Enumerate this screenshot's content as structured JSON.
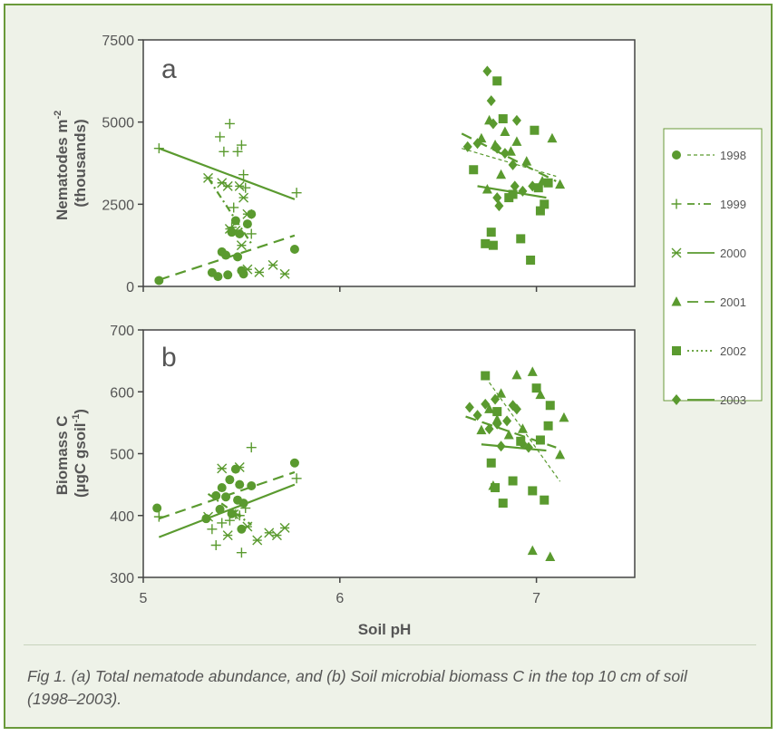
{
  "colors": {
    "series": "#5a9a2f",
    "frame_border": "#6a9a3a",
    "background": "#eef2e8",
    "axis": "#444444",
    "text": "#555555"
  },
  "caption": "Fig 1. (a) Total nematode abundance, and (b) Soil microbial biomass C in the top 10 cm of soil (1998–2003).",
  "legend": [
    {
      "name": "1998",
      "marker": "circle",
      "line": "fine-dash"
    },
    {
      "name": "1999",
      "marker": "plus",
      "line": "dash-dot"
    },
    {
      "name": "2000",
      "marker": "asterisk",
      "line": "solid"
    },
    {
      "name": "2001",
      "marker": "triangle",
      "line": "long-dash"
    },
    {
      "name": "2002",
      "marker": "square",
      "line": "dotted"
    },
    {
      "name": "2003",
      "marker": "diamond",
      "line": "solid"
    }
  ],
  "chart_data": [
    {
      "type": "scatter",
      "panel_label": "a",
      "xlabel": "",
      "ylabel": "Nematodes m⁻² (thousands)",
      "xlim": [
        5,
        7.5
      ],
      "ylim": [
        0,
        7500
      ],
      "x_ticks": [],
      "y_ticks": [
        "0",
        "2500",
        "5000",
        "7500"
      ],
      "y_tick_values": [
        0,
        2500,
        5000,
        7500
      ],
      "points": [
        {
          "m": "circle",
          "x": 5.08,
          "y": 180
        },
        {
          "m": "circle",
          "x": 5.35,
          "y": 420
        },
        {
          "m": "circle",
          "x": 5.38,
          "y": 300
        },
        {
          "m": "circle",
          "x": 5.4,
          "y": 1050
        },
        {
          "m": "circle",
          "x": 5.42,
          "y": 950
        },
        {
          "m": "circle",
          "x": 5.43,
          "y": 350
        },
        {
          "m": "circle",
          "x": 5.45,
          "y": 1650
        },
        {
          "m": "circle",
          "x": 5.47,
          "y": 2000
        },
        {
          "m": "circle",
          "x": 5.48,
          "y": 900
        },
        {
          "m": "circle",
          "x": 5.49,
          "y": 1600
        },
        {
          "m": "circle",
          "x": 5.5,
          "y": 480
        },
        {
          "m": "circle",
          "x": 5.51,
          "y": 380
        },
        {
          "m": "circle",
          "x": 5.53,
          "y": 1900
        },
        {
          "m": "circle",
          "x": 5.55,
          "y": 2200
        },
        {
          "m": "circle",
          "x": 5.77,
          "y": 1130
        },
        {
          "m": "plus",
          "x": 5.08,
          "y": 4200
        },
        {
          "m": "plus",
          "x": 5.39,
          "y": 4550
        },
        {
          "m": "plus",
          "x": 5.41,
          "y": 4100
        },
        {
          "m": "plus",
          "x": 5.44,
          "y": 4950
        },
        {
          "m": "plus",
          "x": 5.48,
          "y": 4100
        },
        {
          "m": "plus",
          "x": 5.5,
          "y": 4300
        },
        {
          "m": "plus",
          "x": 5.51,
          "y": 3400
        },
        {
          "m": "plus",
          "x": 5.52,
          "y": 3000
        },
        {
          "m": "plus",
          "x": 5.46,
          "y": 2400
        },
        {
          "m": "plus",
          "x": 5.45,
          "y": 1800
        },
        {
          "m": "plus",
          "x": 5.55,
          "y": 1600
        },
        {
          "m": "plus",
          "x": 5.78,
          "y": 2850
        },
        {
          "m": "asterisk",
          "x": 5.33,
          "y": 3300
        },
        {
          "m": "asterisk",
          "x": 5.4,
          "y": 3150
        },
        {
          "m": "asterisk",
          "x": 5.43,
          "y": 3050
        },
        {
          "m": "asterisk",
          "x": 5.49,
          "y": 3050
        },
        {
          "m": "asterisk",
          "x": 5.51,
          "y": 2700
        },
        {
          "m": "asterisk",
          "x": 5.53,
          "y": 2200
        },
        {
          "m": "asterisk",
          "x": 5.44,
          "y": 1750
        },
        {
          "m": "asterisk",
          "x": 5.47,
          "y": 1700
        },
        {
          "m": "asterisk",
          "x": 5.5,
          "y": 1250
        },
        {
          "m": "asterisk",
          "x": 5.53,
          "y": 520
        },
        {
          "m": "asterisk",
          "x": 5.59,
          "y": 430
        },
        {
          "m": "asterisk",
          "x": 5.66,
          "y": 650
        },
        {
          "m": "asterisk",
          "x": 5.72,
          "y": 380
        },
        {
          "m": "triangle",
          "x": 6.72,
          "y": 4500
        },
        {
          "m": "triangle",
          "x": 6.76,
          "y": 5050
        },
        {
          "m": "triangle",
          "x": 6.79,
          "y": 4300
        },
        {
          "m": "triangle",
          "x": 6.84,
          "y": 4700
        },
        {
          "m": "triangle",
          "x": 6.87,
          "y": 4100
        },
        {
          "m": "triangle",
          "x": 6.9,
          "y": 4400
        },
        {
          "m": "triangle",
          "x": 6.95,
          "y": 3800
        },
        {
          "m": "triangle",
          "x": 7.03,
          "y": 3200
        },
        {
          "m": "triangle",
          "x": 7.08,
          "y": 4500
        },
        {
          "m": "triangle",
          "x": 7.12,
          "y": 3100
        },
        {
          "m": "triangle",
          "x": 6.82,
          "y": 3400
        },
        {
          "m": "triangle",
          "x": 6.75,
          "y": 2950
        },
        {
          "m": "square",
          "x": 6.68,
          "y": 3550
        },
        {
          "m": "square",
          "x": 6.74,
          "y": 1300
        },
        {
          "m": "square",
          "x": 6.77,
          "y": 1650
        },
        {
          "m": "square",
          "x": 6.78,
          "y": 1250
        },
        {
          "m": "square",
          "x": 6.83,
          "y": 5100
        },
        {
          "m": "square",
          "x": 6.86,
          "y": 2700
        },
        {
          "m": "square",
          "x": 6.92,
          "y": 1450
        },
        {
          "m": "square",
          "x": 6.97,
          "y": 800
        },
        {
          "m": "square",
          "x": 6.99,
          "y": 4750
        },
        {
          "m": "square",
          "x": 7.01,
          "y": 3000
        },
        {
          "m": "square",
          "x": 7.02,
          "y": 2300
        },
        {
          "m": "square",
          "x": 7.04,
          "y": 2500
        },
        {
          "m": "square",
          "x": 7.06,
          "y": 3150
        },
        {
          "m": "square",
          "x": 6.8,
          "y": 6250
        },
        {
          "m": "square",
          "x": 6.88,
          "y": 2800
        },
        {
          "m": "diamond",
          "x": 6.65,
          "y": 4250
        },
        {
          "m": "diamond",
          "x": 6.7,
          "y": 4350
        },
        {
          "m": "diamond",
          "x": 6.75,
          "y": 6550
        },
        {
          "m": "diamond",
          "x": 6.77,
          "y": 5650
        },
        {
          "m": "diamond",
          "x": 6.78,
          "y": 4950
        },
        {
          "m": "diamond",
          "x": 6.8,
          "y": 4200
        },
        {
          "m": "diamond",
          "x": 6.8,
          "y": 2700
        },
        {
          "m": "diamond",
          "x": 6.81,
          "y": 2450
        },
        {
          "m": "diamond",
          "x": 6.84,
          "y": 4050
        },
        {
          "m": "diamond",
          "x": 6.88,
          "y": 3700
        },
        {
          "m": "diamond",
          "x": 6.89,
          "y": 3050
        },
        {
          "m": "diamond",
          "x": 6.9,
          "y": 5050
        },
        {
          "m": "diamond",
          "x": 6.93,
          "y": 2900
        },
        {
          "m": "diamond",
          "x": 6.98,
          "y": 3050
        }
      ],
      "lines": [
        {
          "name": "2000",
          "style": "solid",
          "x": [
            5.08,
            5.77
          ],
          "y": [
            4200,
            2650
          ]
        },
        {
          "name": "2001",
          "style": "long-dash",
          "x": [
            5.08,
            5.77
          ],
          "y": [
            200,
            1550
          ]
        },
        {
          "name": "1999",
          "style": "dash-dot",
          "x": [
            5.33,
            5.55
          ],
          "y": [
            3300,
            1300
          ]
        },
        {
          "name": "2001",
          "style": "long-dash",
          "x": [
            6.62,
            7.1
          ],
          "y": [
            4650,
            3200
          ]
        },
        {
          "name": "1998",
          "style": "fine-dash",
          "x": [
            6.62,
            7.1
          ],
          "y": [
            4200,
            3350
          ]
        },
        {
          "name": "2003",
          "style": "solid",
          "x": [
            6.7,
            7.05
          ],
          "y": [
            3050,
            2700
          ]
        }
      ]
    },
    {
      "type": "scatter",
      "panel_label": "b",
      "xlabel": "Soil pH",
      "ylabel": "Biomass C (µgC gsoil⁻¹)",
      "xlim": [
        5,
        7.5
      ],
      "ylim": [
        300,
        700
      ],
      "x_ticks": [
        "5",
        "6",
        "7"
      ],
      "x_tick_values": [
        5,
        6,
        7
      ],
      "y_ticks": [
        "300",
        "400",
        "500",
        "600",
        "700"
      ],
      "y_tick_values": [
        300,
        400,
        500,
        600,
        700
      ],
      "points": [
        {
          "m": "circle",
          "x": 5.07,
          "y": 412
        },
        {
          "m": "circle",
          "x": 5.32,
          "y": 395
        },
        {
          "m": "circle",
          "x": 5.37,
          "y": 432
        },
        {
          "m": "circle",
          "x": 5.4,
          "y": 445
        },
        {
          "m": "circle",
          "x": 5.42,
          "y": 430
        },
        {
          "m": "circle",
          "x": 5.44,
          "y": 458
        },
        {
          "m": "circle",
          "x": 5.45,
          "y": 403
        },
        {
          "m": "circle",
          "x": 5.47,
          "y": 475
        },
        {
          "m": "circle",
          "x": 5.48,
          "y": 425
        },
        {
          "m": "circle",
          "x": 5.49,
          "y": 450
        },
        {
          "m": "circle",
          "x": 5.5,
          "y": 378
        },
        {
          "m": "circle",
          "x": 5.51,
          "y": 420
        },
        {
          "m": "circle",
          "x": 5.55,
          "y": 448
        },
        {
          "m": "circle",
          "x": 5.77,
          "y": 485
        },
        {
          "m": "circle",
          "x": 5.39,
          "y": 410
        },
        {
          "m": "plus",
          "x": 5.08,
          "y": 398
        },
        {
          "m": "plus",
          "x": 5.35,
          "y": 378
        },
        {
          "m": "plus",
          "x": 5.37,
          "y": 352
        },
        {
          "m": "plus",
          "x": 5.4,
          "y": 388
        },
        {
          "m": "plus",
          "x": 5.44,
          "y": 392
        },
        {
          "m": "plus",
          "x": 5.47,
          "y": 402
        },
        {
          "m": "plus",
          "x": 5.49,
          "y": 400
        },
        {
          "m": "plus",
          "x": 5.5,
          "y": 340
        },
        {
          "m": "plus",
          "x": 5.52,
          "y": 412
        },
        {
          "m": "plus",
          "x": 5.55,
          "y": 510
        },
        {
          "m": "plus",
          "x": 5.78,
          "y": 460
        },
        {
          "m": "asterisk",
          "x": 5.33,
          "y": 398
        },
        {
          "m": "asterisk",
          "x": 5.4,
          "y": 476
        },
        {
          "m": "asterisk",
          "x": 5.43,
          "y": 368
        },
        {
          "m": "asterisk",
          "x": 5.46,
          "y": 402
        },
        {
          "m": "asterisk",
          "x": 5.49,
          "y": 478
        },
        {
          "m": "asterisk",
          "x": 5.53,
          "y": 382
        },
        {
          "m": "asterisk",
          "x": 5.58,
          "y": 360
        },
        {
          "m": "asterisk",
          "x": 5.64,
          "y": 372
        },
        {
          "m": "asterisk",
          "x": 5.68,
          "y": 368
        },
        {
          "m": "asterisk",
          "x": 5.72,
          "y": 380
        },
        {
          "m": "triangle",
          "x": 6.72,
          "y": 538
        },
        {
          "m": "triangle",
          "x": 6.76,
          "y": 572
        },
        {
          "m": "triangle",
          "x": 6.8,
          "y": 555
        },
        {
          "m": "triangle",
          "x": 6.82,
          "y": 597
        },
        {
          "m": "triangle",
          "x": 6.86,
          "y": 530
        },
        {
          "m": "triangle",
          "x": 6.9,
          "y": 627
        },
        {
          "m": "triangle",
          "x": 6.93,
          "y": 540
        },
        {
          "m": "triangle",
          "x": 6.98,
          "y": 632
        },
        {
          "m": "triangle",
          "x": 7.02,
          "y": 595
        },
        {
          "m": "triangle",
          "x": 6.98,
          "y": 343
        },
        {
          "m": "triangle",
          "x": 7.07,
          "y": 333
        },
        {
          "m": "triangle",
          "x": 7.12,
          "y": 498
        },
        {
          "m": "triangle",
          "x": 7.14,
          "y": 558
        },
        {
          "m": "triangle",
          "x": 6.78,
          "y": 448
        },
        {
          "m": "square",
          "x": 6.74,
          "y": 626
        },
        {
          "m": "square",
          "x": 6.77,
          "y": 485
        },
        {
          "m": "square",
          "x": 6.79,
          "y": 445
        },
        {
          "m": "square",
          "x": 6.83,
          "y": 420
        },
        {
          "m": "square",
          "x": 6.88,
          "y": 456
        },
        {
          "m": "square",
          "x": 6.92,
          "y": 520
        },
        {
          "m": "square",
          "x": 6.98,
          "y": 440
        },
        {
          "m": "square",
          "x": 7.0,
          "y": 606
        },
        {
          "m": "square",
          "x": 7.02,
          "y": 522
        },
        {
          "m": "square",
          "x": 7.04,
          "y": 425
        },
        {
          "m": "square",
          "x": 7.06,
          "y": 545
        },
        {
          "m": "square",
          "x": 7.07,
          "y": 578
        },
        {
          "m": "square",
          "x": 6.8,
          "y": 568
        },
        {
          "m": "diamond",
          "x": 6.66,
          "y": 575
        },
        {
          "m": "diamond",
          "x": 6.7,
          "y": 562
        },
        {
          "m": "diamond",
          "x": 6.74,
          "y": 580
        },
        {
          "m": "diamond",
          "x": 6.76,
          "y": 540
        },
        {
          "m": "diamond",
          "x": 6.79,
          "y": 588
        },
        {
          "m": "diamond",
          "x": 6.8,
          "y": 548
        },
        {
          "m": "diamond",
          "x": 6.82,
          "y": 512
        },
        {
          "m": "diamond",
          "x": 6.85,
          "y": 553
        },
        {
          "m": "diamond",
          "x": 6.88,
          "y": 578
        },
        {
          "m": "diamond",
          "x": 6.9,
          "y": 572
        },
        {
          "m": "diamond",
          "x": 6.93,
          "y": 516
        },
        {
          "m": "diamond",
          "x": 6.96,
          "y": 510
        }
      ],
      "lines": [
        {
          "name": "2001",
          "style": "long-dash",
          "x": [
            5.08,
            5.77
          ],
          "y": [
            395,
            470
          ]
        },
        {
          "name": "2003",
          "style": "solid",
          "x": [
            5.08,
            5.77
          ],
          "y": [
            365,
            450
          ]
        },
        {
          "name": "1999",
          "style": "dash-dot",
          "x": [
            5.33,
            5.55
          ],
          "y": [
            435,
            385
          ]
        },
        {
          "name": "2003",
          "style": "solid",
          "x": [
            6.72,
            7.05
          ],
          "y": [
            515,
            505
          ]
        },
        {
          "name": "2001",
          "style": "long-dash",
          "x": [
            6.64,
            7.1
          ],
          "y": [
            560,
            510
          ]
        },
        {
          "name": "1998",
          "style": "fine-dash",
          "x": [
            6.76,
            7.12
          ],
          "y": [
            615,
            455
          ]
        }
      ]
    }
  ]
}
